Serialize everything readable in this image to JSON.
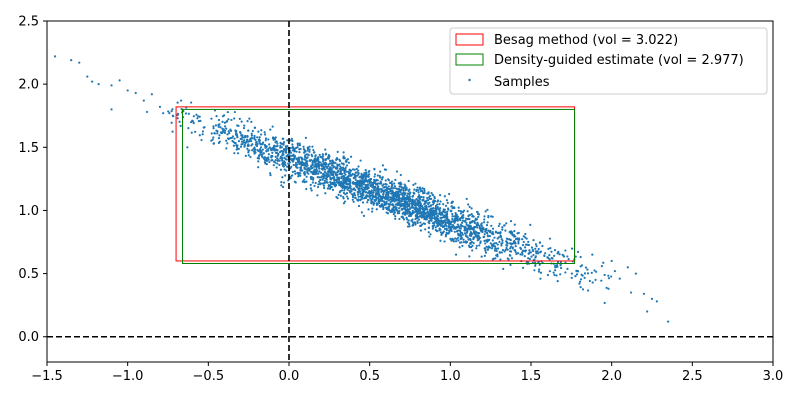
{
  "chart_data": {
    "type": "scatter",
    "title": "",
    "xlabel": "",
    "ylabel": "",
    "xlim": [
      -1.5,
      3.0
    ],
    "ylim": [
      -0.2,
      2.5
    ],
    "xticks": [
      -1.5,
      -1.0,
      -0.5,
      0.0,
      0.5,
      1.0,
      1.5,
      2.0,
      2.5,
      3.0
    ],
    "yticks": [
      0.0,
      0.5,
      1.0,
      1.5,
      2.0,
      2.5
    ],
    "xtick_labels": [
      "−1.5",
      "−1.0",
      "−0.5",
      "0.0",
      "0.5",
      "1.0",
      "1.5",
      "2.0",
      "2.5",
      "3.0"
    ],
    "ytick_labels": [
      "0.0",
      "0.5",
      "1.0",
      "1.5",
      "2.0",
      "2.5"
    ],
    "grid": false,
    "legend_position": "top-right",
    "reference_lines": [
      {
        "orientation": "vertical",
        "value": 0.0,
        "style": "dashed",
        "color": "#000000"
      },
      {
        "orientation": "horizontal",
        "value": 0.0,
        "style": "dashed",
        "color": "#000000"
      }
    ],
    "rectangles": [
      {
        "name": "Besag method (vol = 3.022)",
        "x_min": -0.7,
        "x_max": 1.77,
        "y_min": 0.6,
        "y_max": 1.82,
        "color": "#ff0000"
      },
      {
        "name": "Density-guided estimate (vol = 2.977)",
        "x_min": -0.66,
        "x_max": 1.77,
        "y_min": 0.58,
        "y_max": 1.8,
        "color": "#008000"
      }
    ],
    "series": [
      {
        "name": "Samples",
        "color": "#1f77b4",
        "points": [
          [
            -1.45,
            2.22
          ],
          [
            -1.35,
            2.19
          ],
          [
            -1.3,
            2.17
          ],
          [
            -1.25,
            2.06
          ],
          [
            -1.22,
            2.02
          ],
          [
            -1.18,
            2.0
          ],
          [
            -1.1,
            1.99
          ],
          [
            -1.05,
            2.03
          ],
          [
            -1.1,
            1.8
          ],
          [
            -1.0,
            1.95
          ],
          [
            -0.95,
            1.93
          ],
          [
            -0.9,
            1.87
          ],
          [
            -0.88,
            1.78
          ],
          [
            -0.85,
            1.92
          ],
          [
            -0.8,
            1.82
          ],
          [
            -0.78,
            1.77
          ],
          [
            -0.72,
            1.75
          ],
          [
            -0.69,
            1.73
          ],
          [
            -0.63,
            1.5
          ],
          [
            -0.6,
            1.71
          ],
          [
            2.2,
            0.34
          ],
          [
            2.25,
            0.3
          ],
          [
            2.28,
            0.28
          ],
          [
            2.35,
            0.12
          ],
          [
            2.22,
            0.2
          ],
          [
            2.15,
            0.5
          ],
          [
            2.05,
            0.46
          ],
          [
            1.98,
            0.38
          ],
          [
            1.9,
            0.45
          ],
          [
            1.8,
            0.42
          ],
          [
            2.0,
            0.6
          ],
          [
            2.1,
            0.55
          ],
          [
            2.02,
            0.52
          ],
          [
            1.88,
            0.65
          ],
          [
            2.12,
            0.35
          ]
        ],
        "main_cloud": {
          "count": 2800,
          "x_mean": 0.6,
          "x_sd": 0.55,
          "x_range": [
            -0.75,
            2.0
          ],
          "trend": {
            "slope": -0.5,
            "intercept": 1.42
          },
          "residual_sd": 0.075,
          "seed": 20240601
        }
      }
    ]
  }
}
